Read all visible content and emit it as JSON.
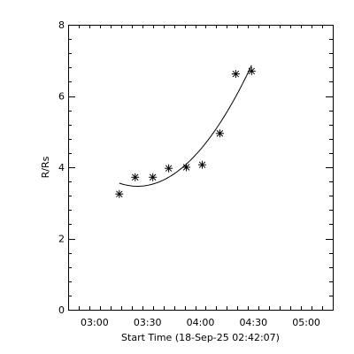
{
  "chart_data": {
    "type": "scatter",
    "title": "",
    "xlabel": "Start Time (18-Sep-25 02:42:07)",
    "ylabel": "R/Rs",
    "x_ticks": [
      "03:00",
      "03:30",
      "04:00",
      "04:30",
      "05:00"
    ],
    "x_tick_minutes": [
      0,
      30,
      60,
      90,
      120
    ],
    "y_ticks": [
      "0",
      "2",
      "4",
      "6",
      "8"
    ],
    "xlim_minutes": [
      -15,
      135
    ],
    "ylim": [
      0,
      8
    ],
    "grid": false,
    "x_unit_note": "time of day, minutes after 03:00",
    "points": [
      {
        "t": 14,
        "r": 3.25
      },
      {
        "t": 23,
        "r": 3.72
      },
      {
        "t": 33,
        "r": 3.72
      },
      {
        "t": 42,
        "r": 3.97
      },
      {
        "t": 52,
        "r": 4.0
      },
      {
        "t": 61,
        "r": 4.07
      },
      {
        "t": 71,
        "r": 4.95
      },
      {
        "t": 80,
        "r": 6.62
      },
      {
        "t": 89,
        "r": 6.7
      }
    ],
    "fit": {
      "type": "quadratic",
      "t_range": [
        14,
        89
      ]
    }
  }
}
